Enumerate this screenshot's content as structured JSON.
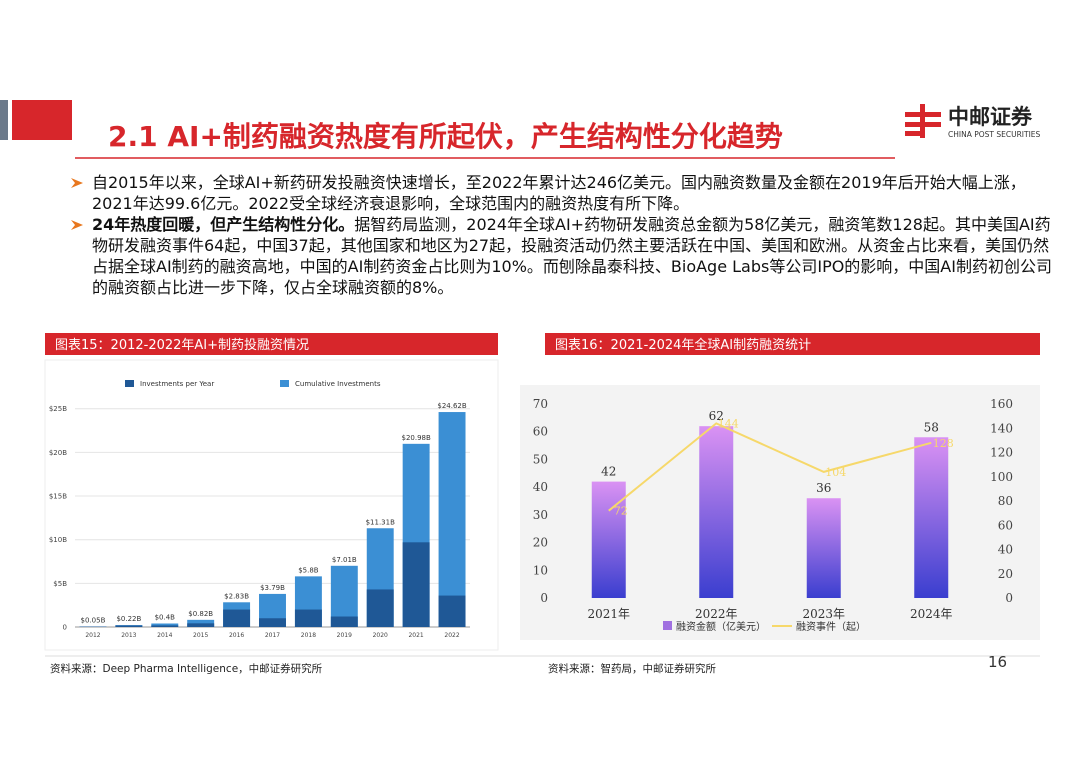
{
  "header": {
    "title": "2.1 AI+制药融资热度有所起伏，产生结构性分化趋势"
  },
  "logo": {
    "name": "中邮证券",
    "subtitle": "CHINA POST SECURITIES"
  },
  "bullets": [
    {
      "text": "自2015年以来，全球AI+新药研发投融资快速增长，至2022年累计达246亿美元。国内融资数量及金额在2019年后开始大幅上涨，2021年达99.6亿元。2022受全球经济衰退影响，全球范围内的融资热度有所下降。"
    },
    {
      "bold": "24年热度回暖，但产生结构性分化。",
      "text": "据智药局监测，2024年全球AI+药物研发融资总金额为58亿美元，融资笔数128起。其中美国AI药物研发融资事件64起，中国37起，其他国家和地区为27起，投融资活动仍然主要活跃在中国、美国和欧洲。从资金占比来看，美国仍然占据全球AI制药的融资高地，中国的AI制药资金占比则为10%。而刨除晶泰科技、BioAge Labs等公司IPO的影响，中国AI制药初创公司的融资额占比进一步下降，仅占全球融资额的8%。"
    }
  ],
  "page_number": "16",
  "chart_data": [
    {
      "type": "bar",
      "title": "图表15：2012-2022年AI+制药投融资情况",
      "source": "资料来源：Deep Pharma Intelligence，中邮证券研究所",
      "categories": [
        "2012",
        "2013",
        "2014",
        "2015",
        "2016",
        "2017",
        "2018",
        "2019",
        "2020",
        "2021",
        "2022"
      ],
      "series": [
        {
          "name": "Investments per Year",
          "color": "#1f5896",
          "values": [
            0.05,
            0.17,
            0.18,
            0.42,
            2.0,
            1.0,
            2.0,
            1.2,
            4.3,
            9.7,
            3.6
          ]
        },
        {
          "name": "Cumulative Investments",
          "color": "#3b8fd4",
          "values": [
            0.05,
            0.22,
            0.4,
            0.82,
            2.83,
            3.79,
            5.8,
            7.01,
            11.31,
            20.98,
            24.62
          ],
          "value_labels": [
            "$0.05B",
            "$0.22B",
            "$0.4B",
            "$0.82B",
            "$2.83B",
            "$3.79B",
            "$5.8B",
            "$7.01B",
            "$11.31B",
            "$20.98B",
            "$24.62B"
          ]
        }
      ],
      "ylim": [
        0,
        26
      ],
      "yticks": [
        0,
        {
          "value": 5,
          "label": "$5B"
        },
        {
          "value": 10,
          "label": "$10B"
        },
        {
          "value": 15,
          "label": "$15B"
        },
        {
          "value": 20,
          "label": "$20B"
        },
        {
          "value": 25,
          "label": "$25B"
        }
      ],
      "grid": true
    },
    {
      "type": "bar_line",
      "title": "图表16：2021-2024年全球AI制药融资统计",
      "source": "资料来源：智药局，中邮证券研究所",
      "categories": [
        "2021年",
        "2022年",
        "2023年",
        "2024年"
      ],
      "series": [
        {
          "name": "融资金额（亿美元）",
          "color": "#a070e0",
          "gradient": [
            "#da92f3",
            "#3a3ecf"
          ],
          "values": [
            42,
            62,
            36,
            58
          ]
        },
        {
          "name": "融资事件（起）",
          "color": "#f6d86a",
          "axis": "y2",
          "values": [
            72,
            144,
            104,
            128
          ]
        }
      ],
      "ylim": [
        0,
        70
      ],
      "yticks": [
        0,
        10,
        20,
        30,
        40,
        50,
        60,
        70
      ],
      "y2lim": [
        0,
        160
      ],
      "y2ticks": [
        0,
        20,
        40,
        60,
        80,
        100,
        120,
        140,
        160
      ],
      "grid": false
    }
  ]
}
